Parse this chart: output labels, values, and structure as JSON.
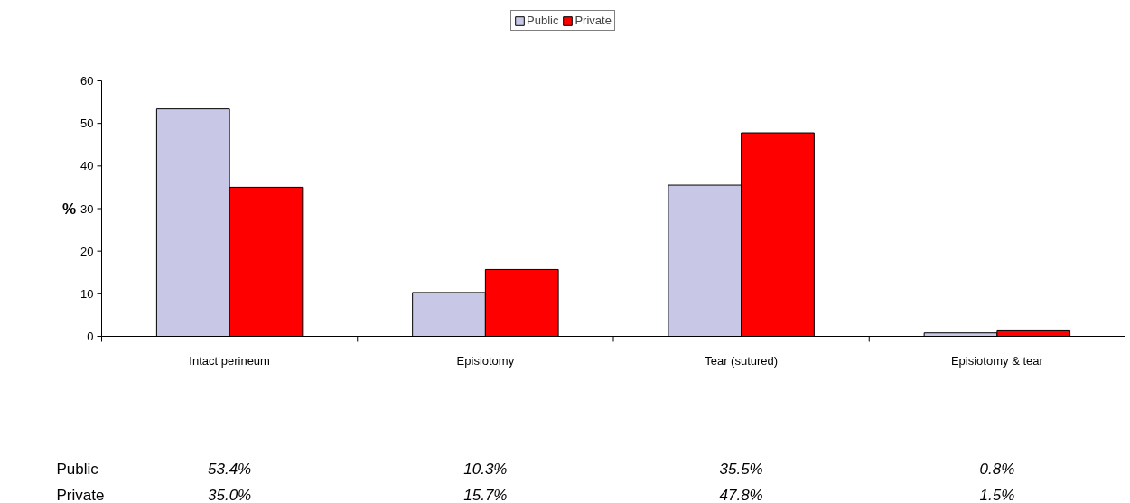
{
  "chart_data": {
    "type": "bar",
    "ylabel": "%",
    "categories": [
      "Intact perineum",
      "Episiotomy",
      "Tear (sutured)",
      "Episiotomy & tear"
    ],
    "series": [
      {
        "name": "Public",
        "color": "#c8c8e6",
        "values": [
          53.4,
          10.3,
          35.5,
          0.8
        ],
        "value_labels": [
          "53.4%",
          "10.3%",
          "35.5%",
          "0.8%"
        ]
      },
      {
        "name": "Private",
        "color": "#ff0000",
        "values": [
          35.0,
          15.7,
          47.8,
          1.5
        ],
        "value_labels": [
          "35.0%",
          "15.7%",
          "47.8%",
          "1.5%"
        ]
      }
    ],
    "ylim": [
      0,
      60
    ],
    "yticks": [
      0,
      10,
      20,
      30,
      40,
      50,
      60
    ],
    "grid": false,
    "legend": "top"
  }
}
